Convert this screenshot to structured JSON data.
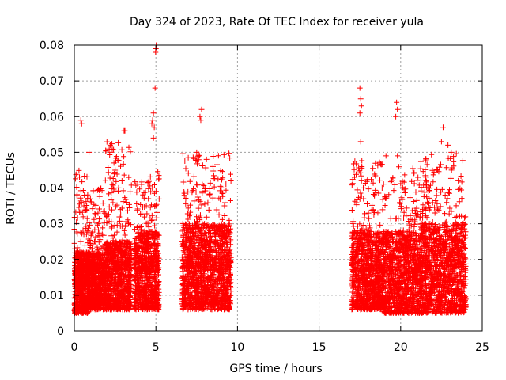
{
  "chart_data": {
    "type": "scatter",
    "title": "Day 324 of 2023, Rate Of TEC Index for receiver yula",
    "xlabel": "GPS time / hours",
    "ylabel": "ROTI / TECUs",
    "xlim": [
      0,
      25
    ],
    "ylim": [
      0,
      0.08
    ],
    "x_ticks": [
      0,
      5,
      10,
      15,
      20,
      25
    ],
    "x_tick_labels": [
      "0",
      "5",
      "10",
      "15",
      "20",
      "25"
    ],
    "y_ticks": [
      0,
      0.01,
      0.02,
      0.03,
      0.04,
      0.05,
      0.06,
      0.07,
      0.08
    ],
    "y_tick_labels": [
      "0",
      "0.01",
      "0.02",
      "0.03",
      "0.04",
      "0.05",
      "0.06",
      "0.07",
      "0.08"
    ],
    "grid": true,
    "marker": "plus",
    "color": "#ff0000",
    "series": [
      {
        "name": "ROTI",
        "clusters": [
          {
            "x_range": [
              0.0,
              0.85
            ],
            "y_core": [
              0.005,
              0.022
            ],
            "y_max": 0.045,
            "count": 700
          },
          {
            "x_range": [
              0.85,
              1.9
            ],
            "y_core": [
              0.006,
              0.022
            ],
            "y_max": 0.04,
            "count": 650
          },
          {
            "x_range": [
              1.9,
              3.5
            ],
            "y_core": [
              0.006,
              0.025
            ],
            "y_max": 0.053,
            "count": 900
          },
          {
            "x_range": [
              3.7,
              5.2
            ],
            "y_core": [
              0.006,
              0.028
            ],
            "y_max": 0.045,
            "count": 850
          },
          {
            "x_range": [
              6.6,
              9.6
            ],
            "y_core": [
              0.006,
              0.03
            ],
            "y_max": 0.05,
            "count": 1500
          },
          {
            "x_range": [
              17.0,
              19.0
            ],
            "y_core": [
              0.006,
              0.028
            ],
            "y_max": 0.048,
            "count": 1000
          },
          {
            "x_range": [
              19.0,
              21.2
            ],
            "y_core": [
              0.005,
              0.028
            ],
            "y_max": 0.046,
            "count": 1050
          },
          {
            "x_range": [
              21.2,
              24.0
            ],
            "y_core": [
              0.005,
              0.03
            ],
            "y_max": 0.05,
            "count": 1300
          }
        ],
        "outliers": [
          [
            0.4,
            0.059
          ],
          [
            0.45,
            0.058
          ],
          [
            0.9,
            0.05
          ],
          [
            2.2,
            0.052
          ],
          [
            2.25,
            0.05
          ],
          [
            3.05,
            0.056
          ],
          [
            3.1,
            0.056
          ],
          [
            4.75,
            0.058
          ],
          [
            4.8,
            0.059
          ],
          [
            4.85,
            0.061
          ],
          [
            4.9,
            0.057
          ],
          [
            4.85,
            0.054
          ],
          [
            4.95,
            0.068
          ],
          [
            4.98,
            0.078
          ],
          [
            5.0,
            0.079
          ],
          [
            5.02,
            0.08
          ],
          [
            7.5,
            0.05
          ],
          [
            7.7,
            0.06
          ],
          [
            7.75,
            0.059
          ],
          [
            7.8,
            0.062
          ],
          [
            8.1,
            0.048
          ],
          [
            8.5,
            0.046
          ],
          [
            17.5,
            0.068
          ],
          [
            17.55,
            0.065
          ],
          [
            17.6,
            0.063
          ],
          [
            17.5,
            0.061
          ],
          [
            17.55,
            0.053
          ],
          [
            19.1,
            0.049
          ],
          [
            19.75,
            0.064
          ],
          [
            19.8,
            0.062
          ],
          [
            19.7,
            0.06
          ],
          [
            19.8,
            0.049
          ],
          [
            22.6,
            0.057
          ],
          [
            22.9,
            0.052
          ],
          [
            23.1,
            0.05
          ],
          [
            22.5,
            0.053
          ]
        ]
      }
    ]
  }
}
